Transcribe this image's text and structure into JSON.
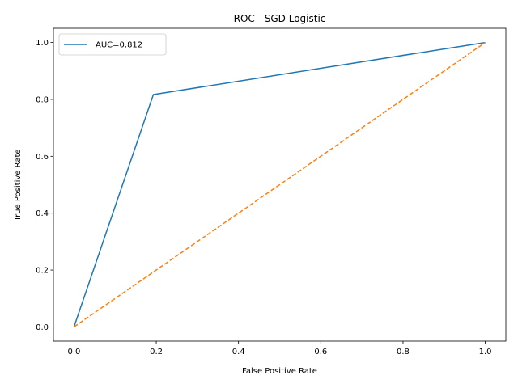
{
  "chart_data": {
    "type": "line",
    "title": "ROC - SGD Logistic",
    "xlabel": "False Positive Rate",
    "ylabel": "True Positive Rate",
    "xlim": [
      -0.05,
      1.05
    ],
    "ylim": [
      -0.05,
      1.05
    ],
    "x_ticks": [
      0.0,
      0.2,
      0.4,
      0.6,
      0.8,
      1.0
    ],
    "y_ticks": [
      0.0,
      0.2,
      0.4,
      0.6,
      0.8,
      1.0
    ],
    "x_tick_labels": [
      "0.0",
      "0.2",
      "0.4",
      "0.6",
      "0.8",
      "1.0"
    ],
    "y_tick_labels": [
      "0.0",
      "0.2",
      "0.4",
      "0.6",
      "0.8",
      "1.0"
    ],
    "grid": false,
    "legend_position": "top-left",
    "series": [
      {
        "name": "AUC=0.812",
        "color": "#1f77b4",
        "style": "solid",
        "x": [
          0.0,
          0.193,
          1.0
        ],
        "y": [
          0.0,
          0.817,
          1.0
        ]
      },
      {
        "color": "#ff7f0e",
        "style": "dashed",
        "x": [
          0.0,
          1.0
        ],
        "y": [
          0.0,
          1.0
        ]
      }
    ]
  }
}
